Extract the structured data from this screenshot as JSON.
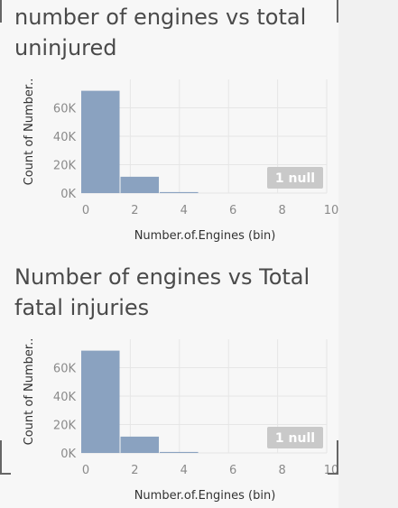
{
  "charts": [
    {
      "title": "number of engines vs total uninjured"
    },
    {
      "title": "Number of engines vs Total fatal injuries"
    }
  ],
  "chart_data": [
    {
      "type": "bar",
      "title": "number of engines vs total uninjured",
      "xlabel": "Number.of.Engines (bin)",
      "ylabel": "Count of Number..",
      "bins": [
        0,
        1.6,
        3.2
      ],
      "bin_width": 1.6,
      "values": [
        72000,
        11500,
        700
      ],
      "xlim": [
        0,
        10
      ],
      "ylim": [
        0,
        80000
      ],
      "x_ticks": [
        "0",
        "2",
        "4",
        "6",
        "8",
        "10"
      ],
      "y_ticks": [
        "0K",
        "20K",
        "40K",
        "60K"
      ],
      "null_badge": "1 null",
      "bar_color": "#8aa2c0"
    },
    {
      "type": "bar",
      "title": "Number of engines vs Total fatal injuries",
      "xlabel": "Number.of.Engines (bin)",
      "ylabel": "Count of Number..",
      "bins": [
        0,
        1.6,
        3.2
      ],
      "bin_width": 1.6,
      "values": [
        72000,
        11500,
        700
      ],
      "xlim": [
        0,
        10
      ],
      "ylim": [
        0,
        80000
      ],
      "x_ticks": [
        "0",
        "2",
        "4",
        "6",
        "8",
        "10"
      ],
      "y_ticks": [
        "0K",
        "20K",
        "40K",
        "60K"
      ],
      "null_badge": "1 null",
      "bar_color": "#8aa2c0"
    }
  ]
}
